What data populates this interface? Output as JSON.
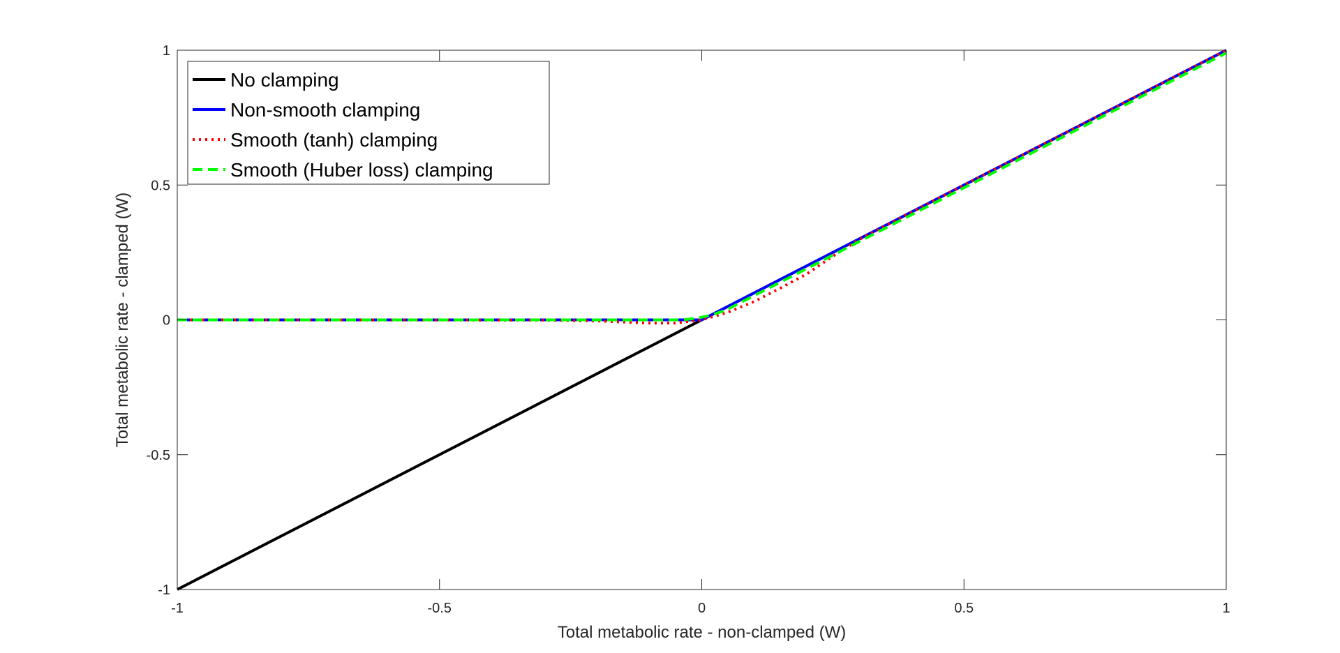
{
  "chart_data": {
    "type": "line",
    "title": "",
    "xlabel": "Total metabolic rate - non-clamped (W)",
    "ylabel": "Total metabolic rate - clamped (W)",
    "xlim": [
      -1,
      1
    ],
    "ylim": [
      -1,
      1
    ],
    "xticks": [
      -1,
      -0.5,
      0,
      0.5,
      1
    ],
    "yticks": [
      -1,
      -0.5,
      0,
      0.5,
      1
    ],
    "xtick_labels": [
      "-1",
      "-0.5",
      "0",
      "0.5",
      "1"
    ],
    "ytick_labels": [
      "-1",
      "-0.5",
      "0",
      "0.5",
      "1"
    ],
    "grid": false,
    "legend_position": "top-left",
    "series": [
      {
        "name": "No clamping",
        "color": "#000000",
        "style": "solid",
        "x": [
          -1,
          0,
          1
        ],
        "y": [
          -1,
          0,
          1
        ]
      },
      {
        "name": "Non-smooth clamping",
        "color": "#0000ff",
        "style": "solid",
        "x": [
          -1,
          0,
          1
        ],
        "y": [
          0,
          0,
          1
        ]
      },
      {
        "name": "Smooth (tanh) clamping",
        "color": "#ff0000",
        "style": "dotted",
        "x": [
          -1,
          -0.3,
          -0.2,
          -0.15,
          -0.1,
          -0.05,
          0,
          0.05,
          0.1,
          0.15,
          0.2,
          0.25,
          0.3,
          0.5,
          1
        ],
        "y": [
          0,
          -0.001,
          -0.004,
          -0.008,
          -0.012,
          -0.012,
          0,
          0.028,
          0.068,
          0.118,
          0.17,
          0.236,
          0.298,
          0.5,
          1
        ]
      },
      {
        "name": "Smooth (Huber loss) clamping",
        "color": "#00ff00",
        "style": "dashed",
        "x": [
          -1,
          -0.05,
          -0.04,
          -0.03,
          -0.02,
          -0.01,
          0,
          0.01,
          0.02,
          0.03,
          0.04,
          0.05,
          0.1,
          0.5,
          1
        ],
        "y": [
          0,
          0,
          0.0004,
          0.0016,
          0.0036,
          0.0064,
          0.01,
          0.0144,
          0.0196,
          0.0256,
          0.0324,
          0.04,
          0.09,
          0.49,
          0.99
        ]
      }
    ]
  }
}
